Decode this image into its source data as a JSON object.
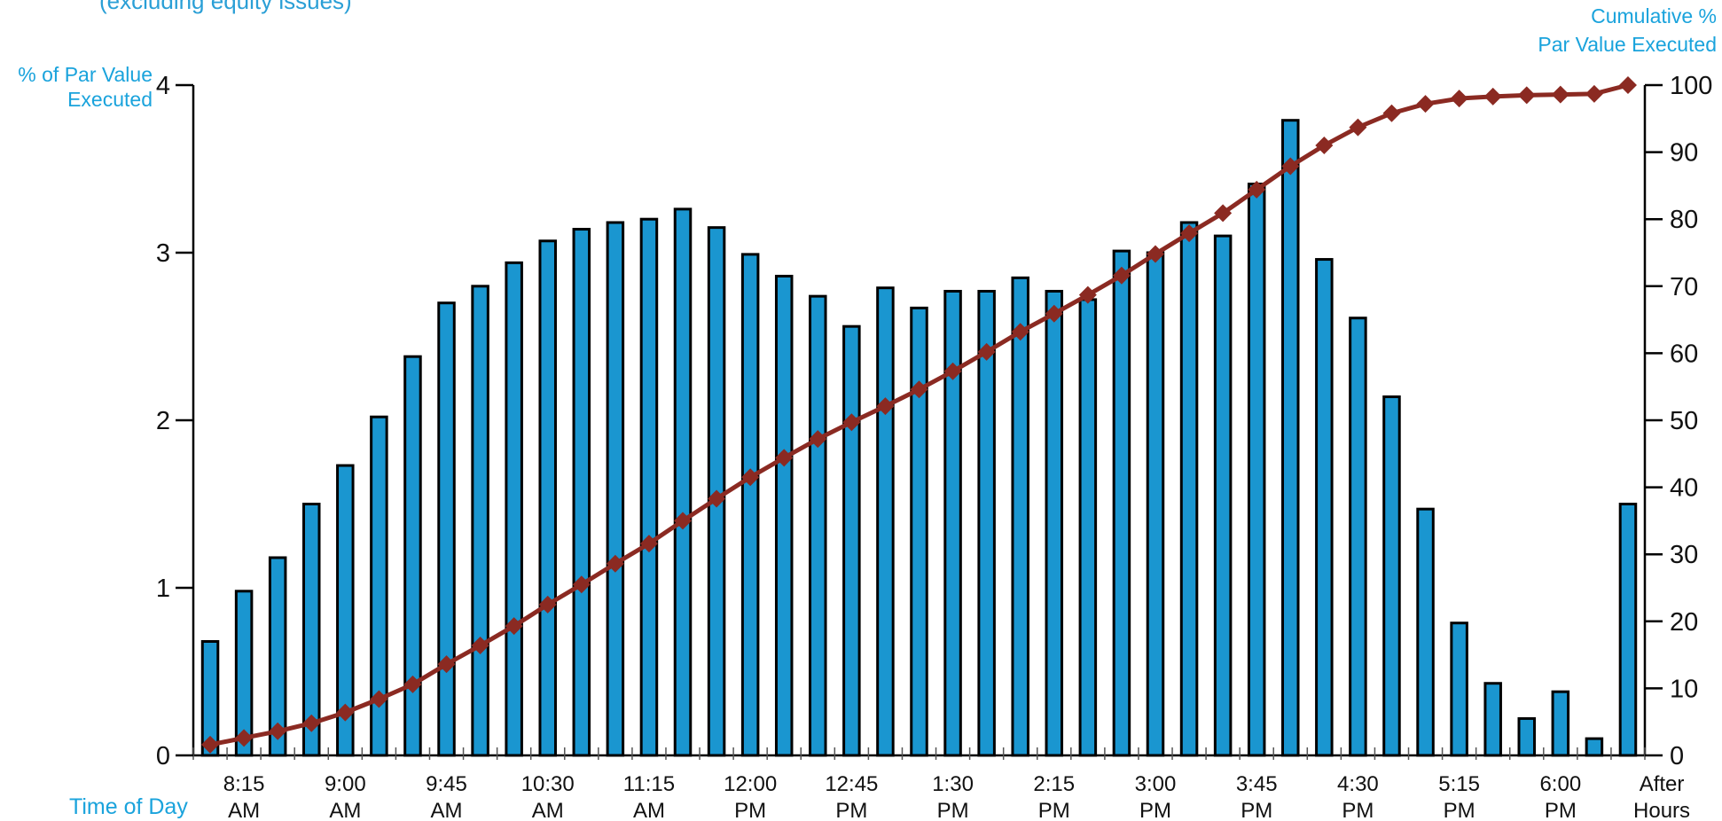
{
  "note_text": "(excluding equity issues)",
  "left_axis_title": [
    "% of Par Value",
    "Executed"
  ],
  "right_axis_title": [
    "Cumulative %",
    "Par Value Executed"
  ],
  "x_axis_title": "Time of Day",
  "colors": {
    "bar": "#1a96d0",
    "line": "#8b2a22",
    "label": "#1aa3dc"
  },
  "chart_data": {
    "type": "bar",
    "ylim_left": [
      0,
      4
    ],
    "ylim_right": [
      0,
      100
    ],
    "left_ticks": [
      0,
      1,
      2,
      3,
      4
    ],
    "right_ticks": [
      0,
      10,
      20,
      30,
      40,
      50,
      60,
      70,
      80,
      90,
      100
    ],
    "x_tick_labels": [
      [
        "8:15",
        "AM"
      ],
      [
        "9:00",
        "AM"
      ],
      [
        "9:45",
        "AM"
      ],
      [
        "10:30",
        "AM"
      ],
      [
        "11:15",
        "AM"
      ],
      [
        "12:00",
        "PM"
      ],
      [
        "12:45",
        "PM"
      ],
      [
        "1:30",
        "PM"
      ],
      [
        "2:15",
        "PM"
      ],
      [
        "3:00",
        "PM"
      ],
      [
        "3:45",
        "PM"
      ],
      [
        "4:30",
        "PM"
      ],
      [
        "5:15",
        "PM"
      ],
      [
        "6:00",
        "PM"
      ],
      [
        "After",
        "Hours"
      ]
    ],
    "series": [
      {
        "kind": "bar",
        "axis": "left",
        "values": [
          0.68,
          0.98,
          1.18,
          1.5,
          1.73,
          2.02,
          2.38,
          2.7,
          2.8,
          2.94,
          3.07,
          3.14,
          3.18,
          3.2,
          3.26,
          3.15,
          2.99,
          2.86,
          2.74,
          2.56,
          2.79,
          2.67,
          2.77,
          2.77,
          2.85,
          2.77,
          2.72,
          3.01,
          3.0,
          3.18,
          3.1,
          3.41,
          3.79,
          2.96,
          2.61,
          2.14,
          1.47,
          0.79,
          0.43,
          0.22,
          0.38,
          0.1,
          1.5
        ]
      },
      {
        "kind": "line",
        "axis": "right",
        "values": [
          1.6,
          2.6,
          3.6,
          4.8,
          6.4,
          8.4,
          10.6,
          13.6,
          16.4,
          19.3,
          22.5,
          25.5,
          28.6,
          31.6,
          35.0,
          38.3,
          41.5,
          44.4,
          47.2,
          49.7,
          52.1,
          54.6,
          57.3,
          60.2,
          63.2,
          65.9,
          68.7,
          71.6,
          74.8,
          77.9,
          80.9,
          84.4,
          87.9,
          91.0,
          93.7,
          95.8,
          97.2,
          98.0,
          98.3,
          98.5,
          98.6,
          98.7,
          100.0
        ]
      }
    ]
  }
}
